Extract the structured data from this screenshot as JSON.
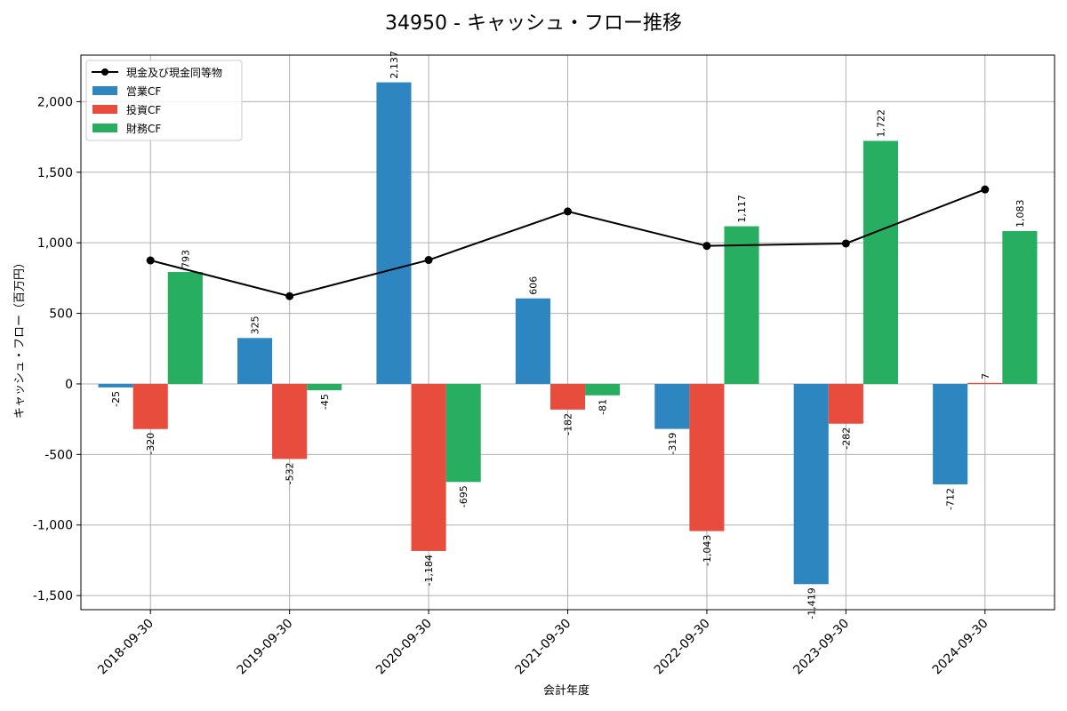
{
  "chart_data": {
    "type": "bar",
    "title": "34950 - キャッシュ・フロー推移",
    "xlabel": "会計年度",
    "ylabel": "キャッシュ・フロー（百万円）",
    "categories": [
      "2018-09-30",
      "2019-09-30",
      "2020-09-30",
      "2021-09-30",
      "2022-09-30",
      "2023-09-30",
      "2024-09-30"
    ],
    "ylim": [
      -1600,
      2330
    ],
    "yticks": [
      -1500,
      -1000,
      -500,
      0,
      500,
      1000,
      1500,
      2000
    ],
    "ytick_labels": [
      "-1,500",
      "-1,000",
      "-500",
      "0",
      "500",
      "1,000",
      "1,500",
      "2,000"
    ],
    "grid": true,
    "legend_position": "top-left",
    "series": [
      {
        "name": "営業CF",
        "kind": "bar",
        "color": "#2e86c1",
        "values": [
          -25,
          325,
          2137,
          606,
          -319,
          -1419,
          -712
        ],
        "labels": [
          "-25",
          "325",
          "2,137",
          "606",
          "-319",
          "-1,419",
          "-712"
        ]
      },
      {
        "name": "投資CF",
        "kind": "bar",
        "color": "#e74c3c",
        "values": [
          -320,
          -532,
          -1184,
          -182,
          -1043,
          -282,
          7
        ],
        "labels": [
          "-320",
          "-532",
          "-1,184",
          "-182",
          "-1,043",
          "-282",
          "7"
        ]
      },
      {
        "name": "財務CF",
        "kind": "bar",
        "color": "#27ae60",
        "values": [
          793,
          -45,
          -695,
          -81,
          1117,
          1722,
          1083
        ],
        "labels": [
          "793",
          "-45",
          "-695",
          "-81",
          "1,117",
          "1,722",
          "1,083"
        ]
      },
      {
        "name": "現金及び現金同等物",
        "kind": "line",
        "color": "#000000",
        "values": [
          875,
          622,
          878,
          1222,
          978,
          995,
          1378
        ]
      }
    ]
  }
}
